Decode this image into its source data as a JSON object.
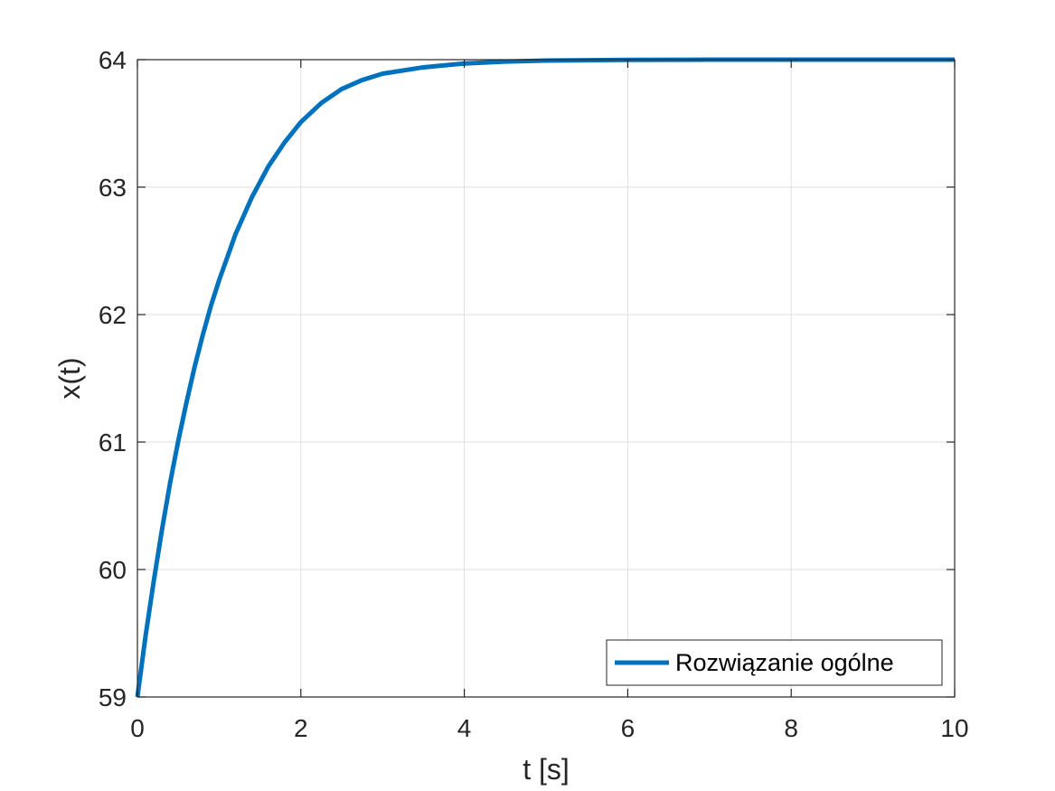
{
  "chart_data": {
    "type": "line",
    "xlabel": "t [s]",
    "ylabel": "x(t)",
    "xlim": [
      0,
      10
    ],
    "ylim": [
      59,
      64
    ],
    "xticks": [
      "0",
      "2",
      "4",
      "6",
      "8",
      "10"
    ],
    "yticks": [
      "59",
      "60",
      "61",
      "62",
      "63",
      "64"
    ],
    "grid": true,
    "legend_position": "bottom-right",
    "series": [
      {
        "name": "Rozwiązanie ogólne",
        "color": "#0072BD",
        "x": [
          0,
          0.1,
          0.2,
          0.3,
          0.4,
          0.5,
          0.6,
          0.7,
          0.8,
          0.9,
          1.0,
          1.2,
          1.4,
          1.6,
          1.8,
          2.0,
          2.25,
          2.5,
          2.75,
          3.0,
          3.5,
          4.0,
          4.5,
          5.0,
          6.0,
          7.0,
          8.0,
          9.0,
          10.0
        ],
        "values": [
          59.0,
          59.48,
          59.91,
          60.31,
          60.68,
          61.01,
          61.31,
          61.59,
          61.84,
          62.07,
          62.27,
          62.63,
          62.92,
          63.16,
          63.35,
          63.51,
          63.66,
          63.77,
          63.84,
          63.89,
          63.94,
          63.97,
          63.985,
          63.993,
          63.998,
          64.0,
          64.0,
          64.0,
          64.0
        ]
      }
    ]
  }
}
